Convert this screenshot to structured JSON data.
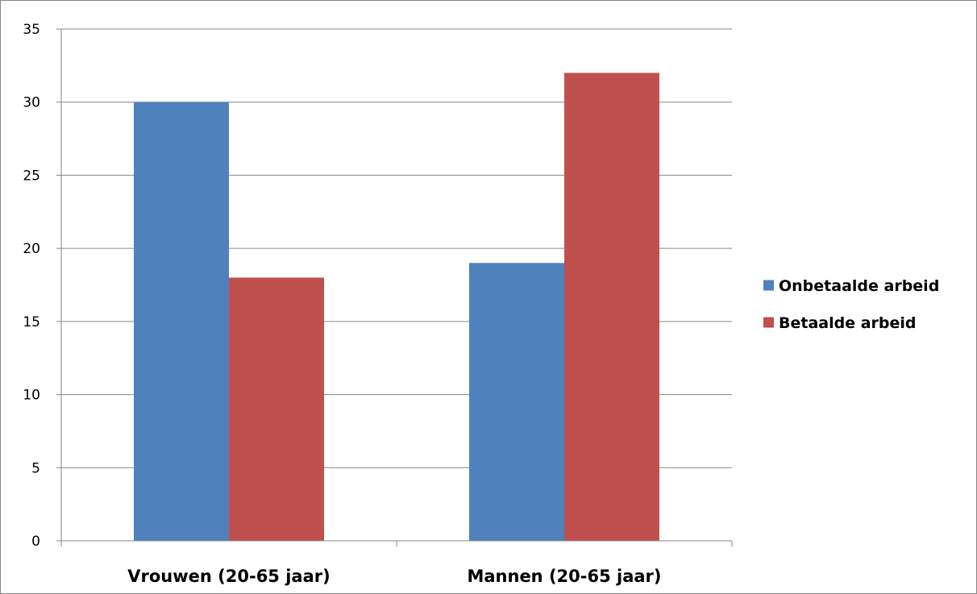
{
  "chart_data": {
    "type": "bar",
    "title": "",
    "xlabel": "",
    "ylabel": "",
    "categories": [
      "Vrouwen (20-65 jaar)",
      "Mannen (20-65 jaar)"
    ],
    "series": [
      {
        "name": "Onbetaalde arbeid",
        "values": [
          30,
          19
        ],
        "color": "#4f81bd"
      },
      {
        "name": "Betaalde arbeid",
        "values": [
          18,
          32
        ],
        "color": "#c0504d"
      }
    ],
    "ylim": [
      0,
      35
    ],
    "yticks": [
      0,
      5,
      10,
      15,
      20,
      25,
      30,
      35
    ],
    "grid": true,
    "legend_position": "right"
  }
}
